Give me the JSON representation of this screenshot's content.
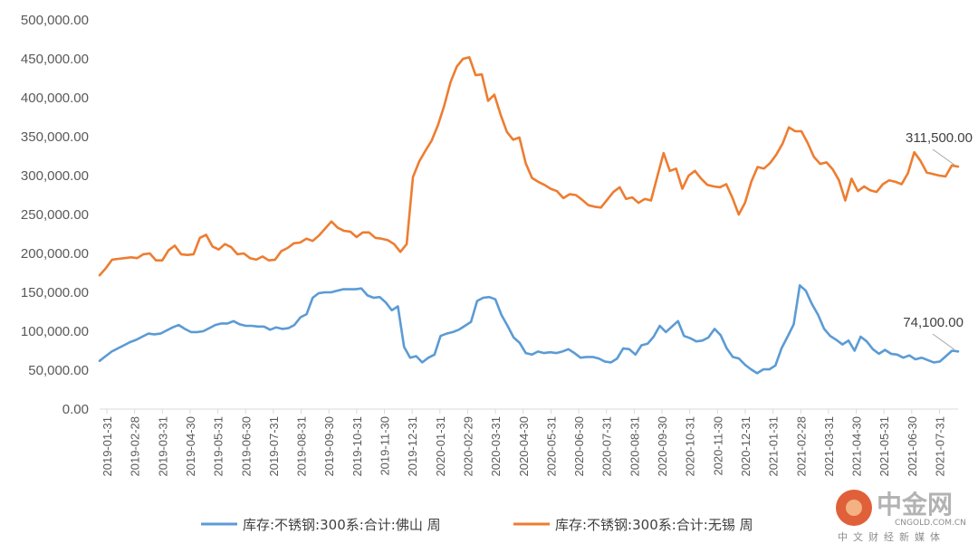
{
  "chart_data": {
    "type": "line",
    "title": "",
    "xlabel": "",
    "ylabel": "",
    "ylim": [
      0,
      500000
    ],
    "y_ticks": [
      "0.00",
      "50,000.00",
      "100,000.00",
      "150,000.00",
      "200,000.00",
      "250,000.00",
      "300,000.00",
      "350,000.00",
      "400,000.00",
      "450,000.00",
      "500,000.00"
    ],
    "x_tick_labels": [
      "2019-01-31",
      "2019-02-28",
      "2019-03-31",
      "2019-04-30",
      "2019-05-31",
      "2019-06-30",
      "2019-07-31",
      "2019-08-31",
      "2019-09-30",
      "2019-10-31",
      "2019-11-30",
      "2019-12-31",
      "2020-01-31",
      "2020-02-29",
      "2020-03-31",
      "2020-04-30",
      "2020-05-31",
      "2020-06-30",
      "2020-07-31",
      "2020-08-31",
      "2020-09-30",
      "2020-10-31",
      "2020-11-30",
      "2020-12-31",
      "2021-01-31",
      "2021-02-28",
      "2021-03-31",
      "2021-04-30",
      "2021-05-31",
      "2021-06-30",
      "2021-07-31"
    ],
    "grid": false,
    "legend_position": "bottom",
    "series": [
      {
        "name": "库存:不锈钢:300系:合计:佛山 周",
        "color": "#5b9bd5",
        "end_label": "74,100.00",
        "values": [
          62000,
          68000,
          74000,
          78000,
          82000,
          86000,
          89000,
          93000,
          97000,
          96000,
          97000,
          101000,
          105000,
          108000,
          103000,
          99000,
          99000,
          100000,
          104000,
          108000,
          110000,
          110000,
          113000,
          109000,
          107000,
          107000,
          106000,
          106000,
          102000,
          105000,
          103000,
          104000,
          108000,
          118000,
          122000,
          143000,
          149000,
          150000,
          150000,
          152000,
          154000,
          154000,
          154000,
          155000,
          146000,
          143000,
          144000,
          137000,
          127000,
          132000,
          80000,
          66000,
          68000,
          60000,
          66000,
          70000,
          94000,
          97000,
          99000,
          102000,
          107000,
          112000,
          139000,
          143000,
          144000,
          141000,
          121000,
          107000,
          92000,
          85000,
          72000,
          70000,
          74000,
          72000,
          73000,
          72000,
          74000,
          77000,
          72000,
          66000,
          67000,
          67000,
          65000,
          61000,
          60000,
          65000,
          78000,
          77000,
          70000,
          82000,
          84000,
          93000,
          107000,
          99000,
          106000,
          113000,
          94000,
          91000,
          87000,
          88000,
          92000,
          103000,
          95000,
          78000,
          67000,
          65000,
          57000,
          51000,
          46000,
          51000,
          51000,
          56000,
          78000,
          93000,
          109000,
          159000,
          152000,
          135000,
          121000,
          103000,
          94000,
          89000,
          83000,
          88000,
          75000,
          93000,
          87000,
          77000,
          71000,
          76000,
          71000,
          70000,
          66000,
          69000,
          64000,
          66000,
          63000,
          60000,
          61000,
          68000,
          75000,
          74100
        ]
      },
      {
        "name": "库存:不锈钢:300系:合计:无锡 周",
        "color": "#ed7d31",
        "end_label": "311,500.00",
        "values": [
          172000,
          181000,
          192000,
          193000,
          194000,
          195000,
          194000,
          199000,
          200000,
          191000,
          191000,
          204000,
          210000,
          199000,
          198000,
          199000,
          220000,
          224000,
          209000,
          205000,
          212000,
          208000,
          199000,
          200000,
          194000,
          192000,
          196000,
          191000,
          192000,
          203000,
          207000,
          213000,
          214000,
          219000,
          216000,
          223000,
          232000,
          241000,
          233000,
          229000,
          228000,
          221000,
          227000,
          227000,
          220000,
          219000,
          217000,
          212000,
          202000,
          212000,
          298000,
          318000,
          332000,
          345000,
          365000,
          390000,
          420000,
          440000,
          450000,
          452000,
          429000,
          430000,
          396000,
          404000,
          378000,
          356000,
          346000,
          349000,
          316000,
          297000,
          292000,
          288000,
          283000,
          280000,
          271000,
          276000,
          275000,
          269000,
          262000,
          260000,
          259000,
          269000,
          279000,
          285000,
          270000,
          272000,
          265000,
          270000,
          268000,
          299000,
          329000,
          306000,
          309000,
          283000,
          300000,
          306000,
          296000,
          288000,
          286000,
          285000,
          289000,
          271000,
          250000,
          265000,
          292000,
          311000,
          309000,
          316000,
          327000,
          341000,
          362000,
          357000,
          357000,
          342000,
          324000,
          315000,
          317000,
          308000,
          294000,
          268000,
          296000,
          280000,
          286000,
          281000,
          279000,
          289000,
          294000,
          292000,
          289000,
          303000,
          330000,
          319000,
          304000,
          302000,
          300000,
          299000,
          313000,
          311500
        ]
      }
    ]
  },
  "watermark": {
    "brand_cn": "中金网",
    "domain": "CNGOLD.COM.CN",
    "tagline": "中文财经新媒体"
  }
}
